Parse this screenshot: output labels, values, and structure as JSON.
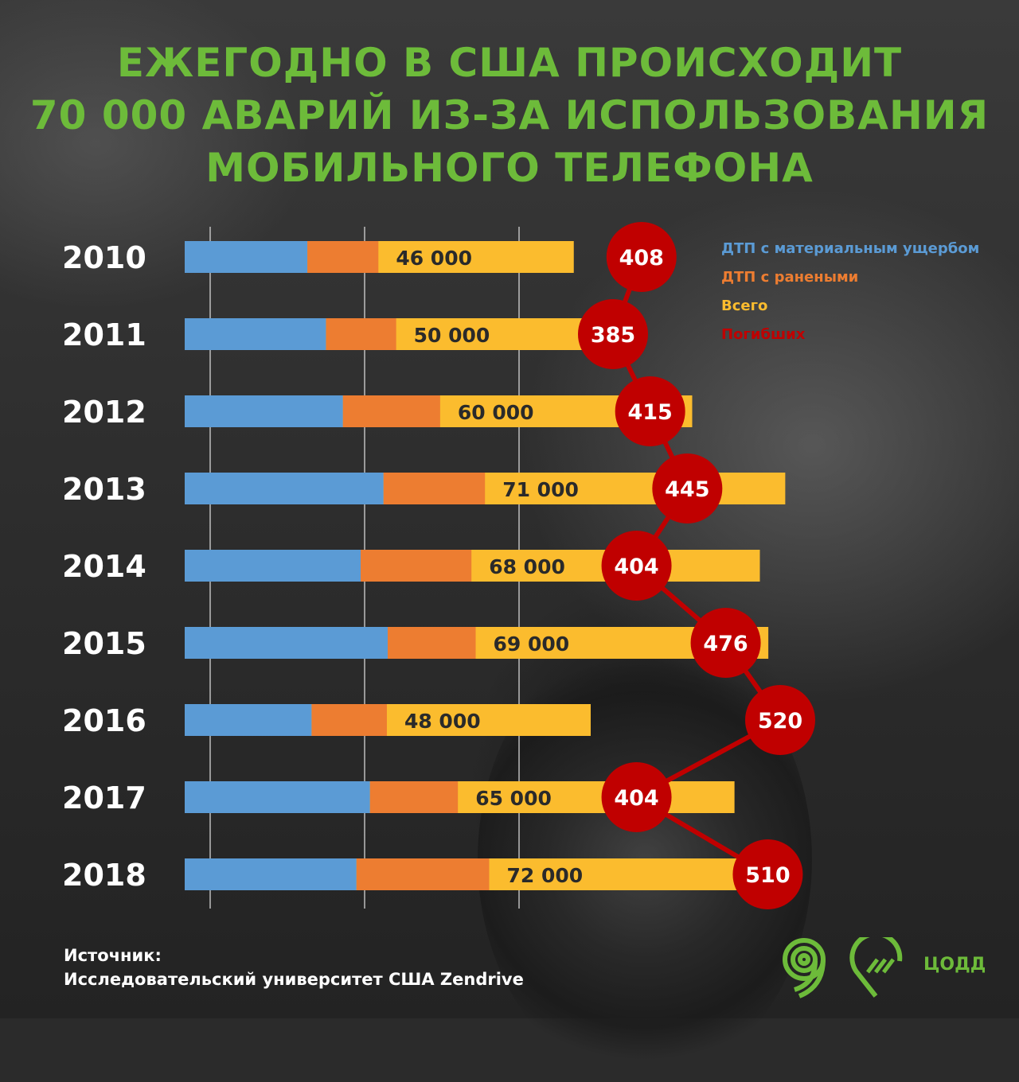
{
  "title": {
    "line1": "ЕЖЕГОДНО В США ПРОИСХОДИТ",
    "line2": "70 000 АВАРИЙ ИЗ-ЗА ИСПОЛЬЗОВАНИЯ",
    "line3": "МОБИЛЬНОГО ТЕЛЕФОНА"
  },
  "legend": {
    "damage": "ДТП с материальным ущербом",
    "injured": "ДТП с ранеными",
    "total": "Всего",
    "deaths": "Погибших"
  },
  "source": {
    "label": "Источник:",
    "text": "Исследовательский университет США Zendrive"
  },
  "brand": {
    "name": "ЦОДД"
  },
  "icons": [
    "logo-9-icon",
    "logo-road-pin-icon"
  ],
  "colors": {
    "damage": "#5b9bd5",
    "injured": "#ed7d31",
    "total": "#fbbc2e",
    "deaths": "#c00000",
    "title": "#6dbb3a"
  },
  "chart_data": {
    "type": "bar",
    "orientation": "horizontal",
    "categories": [
      "2010",
      "2011",
      "2012",
      "2013",
      "2014",
      "2015",
      "2016",
      "2017",
      "2018"
    ],
    "total_labels": [
      "46 000",
      "50 000",
      "60 000",
      "71 000",
      "68 000",
      "69 000",
      "48 000",
      "65 000",
      "72 000"
    ],
    "series": [
      {
        "name": "ДТП с материальным ущербом",
        "values": [
          14500,
          16700,
          18700,
          23500,
          20800,
          24000,
          15000,
          21900,
          20300
        ]
      },
      {
        "name": "ДТП с ранеными",
        "values": [
          8400,
          8300,
          11500,
          12000,
          13100,
          10400,
          8900,
          10400,
          15700
        ]
      },
      {
        "name": "Всего",
        "values": [
          46000,
          50000,
          60000,
          71000,
          68000,
          69000,
          48000,
          65000,
          72000
        ]
      }
    ],
    "deaths": {
      "name": "Погибших",
      "values": [
        408,
        385,
        415,
        445,
        404,
        476,
        520,
        404,
        510
      ]
    },
    "xlim": [
      0,
      72000
    ],
    "grid": true,
    "legend_position": "top-right"
  }
}
